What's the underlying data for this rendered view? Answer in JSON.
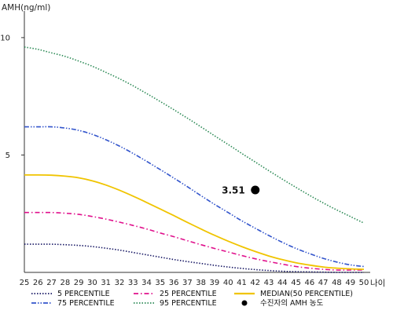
{
  "chart_data": {
    "type": "line",
    "ylabel": "AMH(ng/ml)",
    "xlabel": "나이",
    "x": [
      25,
      26,
      27,
      28,
      29,
      30,
      31,
      32,
      33,
      34,
      35,
      36,
      37,
      38,
      39,
      40,
      41,
      42,
      43,
      44,
      45,
      46,
      47,
      48,
      49,
      50
    ],
    "xlim": [
      25,
      50
    ],
    "ylim": [
      0,
      11
    ],
    "yticks": [
      5,
      10
    ],
    "series": [
      {
        "name": "5 PERCENTILE",
        "color": "#1a1a66",
        "style": "dotted",
        "values": [
          1.2,
          1.2,
          1.2,
          1.18,
          1.15,
          1.1,
          1.03,
          0.95,
          0.85,
          0.75,
          0.65,
          0.55,
          0.46,
          0.38,
          0.3,
          0.23,
          0.17,
          0.12,
          0.08,
          0.05,
          0.03,
          0.02,
          0.01,
          0.0,
          0.0,
          0.0
        ]
      },
      {
        "name": "25 PERCENTILE",
        "color": "#e0108c",
        "style": "dashdot",
        "values": [
          2.55,
          2.55,
          2.55,
          2.52,
          2.47,
          2.38,
          2.27,
          2.14,
          2.0,
          1.85,
          1.68,
          1.52,
          1.35,
          1.18,
          1.02,
          0.87,
          0.72,
          0.58,
          0.46,
          0.35,
          0.25,
          0.18,
          0.13,
          0.1,
          0.1,
          0.1
        ]
      },
      {
        "name": "75 PERCENTILE",
        "color": "#3355cc",
        "style": "dashdotdot",
        "values": [
          6.2,
          6.2,
          6.2,
          6.15,
          6.05,
          5.88,
          5.65,
          5.38,
          5.07,
          4.73,
          4.38,
          4.02,
          3.65,
          3.27,
          2.9,
          2.55,
          2.2,
          1.88,
          1.57,
          1.28,
          1.02,
          0.8,
          0.6,
          0.44,
          0.32,
          0.25
        ]
      },
      {
        "name": "95 PERCENTILE",
        "color": "#2e8b57",
        "style": "dotted",
        "values": [
          9.6,
          9.5,
          9.35,
          9.2,
          9.0,
          8.78,
          8.52,
          8.25,
          7.95,
          7.62,
          7.28,
          6.93,
          6.57,
          6.2,
          5.82,
          5.45,
          5.07,
          4.7,
          4.33,
          3.97,
          3.62,
          3.28,
          2.96,
          2.66,
          2.38,
          2.1
        ]
      },
      {
        "name": "MEDIAN(50 PERCENTILE)",
        "color": "#f0c400",
        "style": "solid",
        "values": [
          4.15,
          4.15,
          4.14,
          4.1,
          4.03,
          3.9,
          3.72,
          3.5,
          3.25,
          2.98,
          2.7,
          2.42,
          2.13,
          1.85,
          1.58,
          1.33,
          1.1,
          0.89,
          0.7,
          0.54,
          0.41,
          0.31,
          0.23,
          0.18,
          0.15,
          0.13
        ]
      }
    ],
    "point": {
      "name": "수진자의 AMH 농도",
      "x": 42,
      "y": 3.51,
      "label": "3.51",
      "color": "#000000"
    },
    "legend": {
      "placement": "bottom",
      "order": [
        "5 PERCENTILE",
        "25 PERCENTILE",
        "MEDIAN(50 PERCENTILE)",
        "75 PERCENTILE",
        "95 PERCENTILE",
        "수진자의 AMH 농도"
      ]
    }
  }
}
